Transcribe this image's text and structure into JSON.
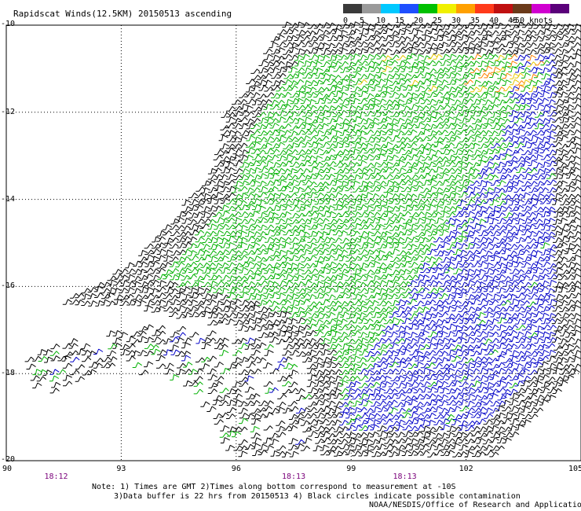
{
  "title": "Rapidscat Winds(12.5KM) 20150513 ascending",
  "map": {
    "lon_ticks": [
      "90",
      "93",
      "96",
      "99",
      "102",
      "105"
    ],
    "lat_ticks": [
      "-10",
      "-12",
      "-14",
      "-16",
      "-18",
      "-20"
    ],
    "lon_range": [
      90,
      105
    ],
    "lat_range": [
      -20,
      -10
    ],
    "grid": true,
    "pass_times": [
      {
        "label": "18:12",
        "lon": 91.3
      },
      {
        "label": "18:13",
        "lon": 97.5
      },
      {
        "label": "18:13",
        "lon": 100.4
      }
    ]
  },
  "legend": {
    "values": [
      "0",
      "5",
      "10",
      "15",
      "20",
      "25",
      "30",
      "35",
      "40",
      "45",
      ">50 knots"
    ],
    "colors": [
      "#3a3a3a",
      "#9a9a9a",
      "#00c8ff",
      "#1e4fff",
      "#00c000",
      "#f0f000",
      "#ffa000",
      "#ff3a1a",
      "#c01010",
      "#6b3a1a",
      "#d000d0",
      "#5a007a"
    ]
  },
  "notes": [
    "Note: 1) Times are GMT 2)Times along bottom correspond to measurement at -10S",
    "3)Data buffer is 22 hrs from 20150513 4) Black circles indicate possible contamination"
  ],
  "credit": "NOAA/NESDIS/Office of Research and Applications",
  "barb_colors": {
    "black": "#000000",
    "green": "#00b000",
    "blue": "#0000c8",
    "yellow": "#e8c800",
    "orange": "#ff8000",
    "red": "#d02000",
    "purple": "#9a009a"
  }
}
